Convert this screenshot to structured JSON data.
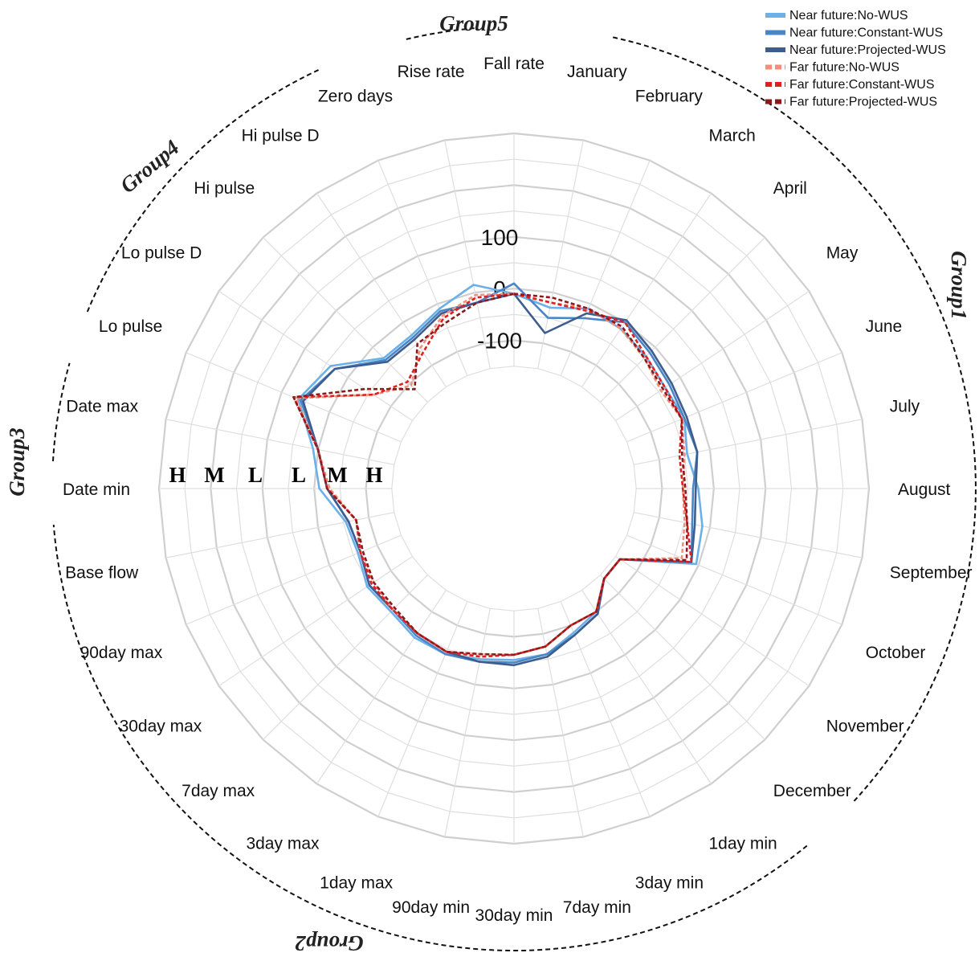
{
  "chart_data": {
    "type": "radar",
    "title": "",
    "categories": [
      "Fall rate",
      "January",
      "February",
      "March",
      "April",
      "May",
      "June",
      "July",
      "August",
      "September",
      "October",
      "November",
      "December",
      "1day min",
      "3day min",
      "7day min",
      "30day min",
      "90day min",
      "1day max",
      "3day max",
      "7day max",
      "30day max",
      "90day max",
      "Base flow",
      "Date min",
      "Date max",
      "Lo pulse",
      "Lo pulse D",
      "Hi pulse",
      "Hi pulse D",
      "Zero days",
      "Rise rate"
    ],
    "ring_labels": [
      {
        "text": "100",
        "value": 100
      },
      {
        "text": "0",
        "value": 0
      },
      {
        "text": "-100",
        "value": -100
      }
    ],
    "radial_range": [
      -200,
      300
    ],
    "hml_markers": [
      "H",
      "M",
      "L",
      "L",
      "M",
      "H"
    ],
    "groups": [
      {
        "name": "Group1",
        "categories": [
          "January",
          "February",
          "March",
          "April",
          "May",
          "June",
          "July",
          "August",
          "September",
          "October",
          "November",
          "December"
        ]
      },
      {
        "name": "Group2",
        "categories": [
          "1day min",
          "3day min",
          "7day min",
          "30day min",
          "90day min",
          "1day max",
          "3day max",
          "7day max",
          "30day max",
          "90day max",
          "Base flow"
        ]
      },
      {
        "name": "Group3",
        "categories": [
          "Date min",
          "Date max"
        ]
      },
      {
        "name": "Group4",
        "categories": [
          "Lo pulse",
          "Lo pulse D",
          "Hi pulse",
          "Hi pulse D"
        ]
      },
      {
        "name": "Group5",
        "categories": [
          "Rise rate",
          "Fall rate"
        ]
      }
    ],
    "legend_position": "top-right",
    "series": [
      {
        "name": "Near future:No-WUS",
        "color": "#6bb0e8",
        "dashed": false,
        "values": [
          -10,
          -30,
          -10,
          -15,
          -25,
          -35,
          -30,
          -45,
          -30,
          -15,
          -5,
          -140,
          -140,
          -100,
          -85,
          -60,
          -55,
          -50,
          -40,
          -40,
          -50,
          -45,
          -60,
          -55,
          -10,
          10,
          65,
          40,
          -30,
          -30,
          -10,
          15
        ]
      },
      {
        "name": "Near future:Constant-WUS",
        "color": "#4a86c5",
        "dashed": false,
        "values": [
          10,
          -50,
          -30,
          0,
          -15,
          -25,
          -30,
          -25,
          -40,
          -35,
          -15,
          -140,
          -140,
          -95,
          -80,
          -60,
          -50,
          -45,
          -40,
          -45,
          -55,
          -50,
          -65,
          -60,
          -25,
          0,
          60,
          30,
          -35,
          -35,
          -15,
          -20
        ]
      },
      {
        "name": "Near future:Projected-WUS",
        "color": "#3d5d8e",
        "dashed": false,
        "values": [
          -10,
          -80,
          -20,
          5,
          -10,
          -20,
          -25,
          -25,
          -35,
          -30,
          -15,
          -140,
          -140,
          -95,
          -80,
          -55,
          -45,
          -45,
          -45,
          -50,
          -55,
          -50,
          -65,
          -60,
          -25,
          0,
          55,
          30,
          -40,
          -40,
          -20,
          -20
        ]
      },
      {
        "name": "Far future:No-WUS",
        "color": "#f28f7c",
        "dashed": true,
        "values": [
          -10,
          -20,
          -10,
          -15,
          -30,
          -45,
          -35,
          -50,
          -60,
          -50,
          -35,
          -140,
          -140,
          -100,
          -100,
          -75,
          -65,
          -60,
          -45,
          -50,
          -55,
          -60,
          -65,
          -75,
          -30,
          0,
          70,
          -60,
          -105,
          -60,
          -25,
          -5
        ]
      },
      {
        "name": "Far future:Constant-WUS",
        "color": "#e02020",
        "dashed": true,
        "values": [
          -10,
          -20,
          -15,
          0,
          -25,
          -35,
          -35,
          -60,
          -60,
          -45,
          -15,
          -140,
          -140,
          -100,
          -100,
          -75,
          -65,
          -55,
          -45,
          -50,
          -55,
          -55,
          -65,
          -75,
          -25,
          0,
          75,
          -60,
          -95,
          -70,
          -30,
          -10
        ]
      },
      {
        "name": "Far future:Projected-WUS",
        "color": "#8b1a1a",
        "dashed": true,
        "values": [
          -10,
          -10,
          -10,
          -10,
          -30,
          -40,
          -35,
          -55,
          -55,
          -45,
          -25,
          -140,
          -140,
          -100,
          -100,
          -75,
          -65,
          -60,
          -45,
          -50,
          -60,
          -60,
          -70,
          -75,
          -25,
          0,
          75,
          -40,
          -115,
          -50,
          -40,
          -20
        ]
      }
    ]
  }
}
